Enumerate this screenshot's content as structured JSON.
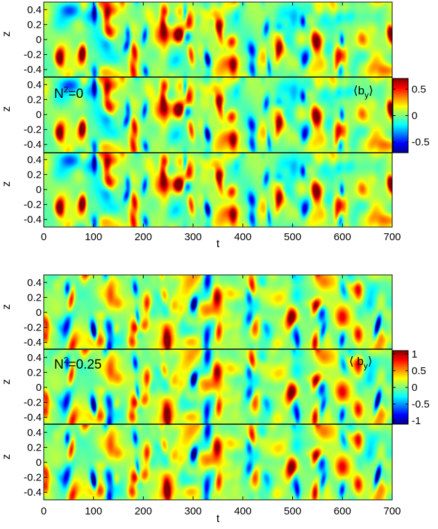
{
  "chart_data": [
    {
      "type": "heatmap",
      "title": "",
      "xlabel": "t",
      "ylabel": "z",
      "xlim": [
        0,
        700
      ],
      "ylim": [
        -0.5,
        0.5
      ],
      "x_ticks": [
        "0",
        "100",
        "200",
        "300",
        "400",
        "500",
        "600",
        "700"
      ],
      "y_ticks": [
        "0.4",
        "0.2",
        "0",
        "-0.2",
        "-0.4"
      ],
      "stacked_copies": 3,
      "annotation": {
        "base": "N",
        "sup": "2",
        "rest": "=0"
      },
      "legend_label": {
        "open": "⟨",
        "base": "b",
        "sub": "y",
        "close": "⟩"
      },
      "colorbar": {
        "range": [
          -0.7,
          0.7
        ],
        "tick_values": [
          0.5,
          0,
          -0.5
        ],
        "tick_labels": [
          "0.5",
          "0",
          "-0.5"
        ]
      },
      "colormap": "jet",
      "pattern": {
        "seed": 17,
        "strong_positive_t": [
          30,
          75,
          130,
          178,
          240,
          268,
          292,
          352,
          380,
          470,
          545,
          590,
          700
        ],
        "strong_negative_t": [
          100,
          165,
          205,
          285,
          330,
          420,
          450,
          520,
          595
        ]
      }
    },
    {
      "type": "heatmap",
      "title": "",
      "xlabel": "t",
      "ylabel": "z",
      "xlim": [
        0,
        700
      ],
      "ylim": [
        -0.5,
        0.5
      ],
      "x_ticks": [
        "0",
        "100",
        "200",
        "300",
        "400",
        "500",
        "600",
        "700"
      ],
      "y_ticks": [
        "0.4",
        "0.2",
        "0",
        "-0.2",
        "-0.4"
      ],
      "stacked_copies": 3,
      "annotation": {
        "base": "N",
        "sup": "2",
        "rest": "=0.25"
      },
      "legend_label": {
        "open": "⟨ ",
        "base": "b",
        "sub": "y",
        "close": "⟩"
      },
      "colorbar": {
        "range": [
          -1.1,
          1.1
        ],
        "tick_values": [
          1,
          0.5,
          0,
          -0.5,
          -1
        ],
        "tick_labels": [
          "1",
          "0.5",
          "0",
          "-0.5",
          "-1"
        ]
      },
      "colormap": "jet",
      "pattern": {
        "seed": 29,
        "strong_positive_t": [
          5,
          55,
          180,
          205,
          245,
          350,
          420,
          500,
          545,
          630
        ],
        "strong_negative_t": [
          45,
          100,
          130,
          185,
          300,
          330,
          410,
          505,
          560,
          600,
          670
        ]
      }
    }
  ]
}
